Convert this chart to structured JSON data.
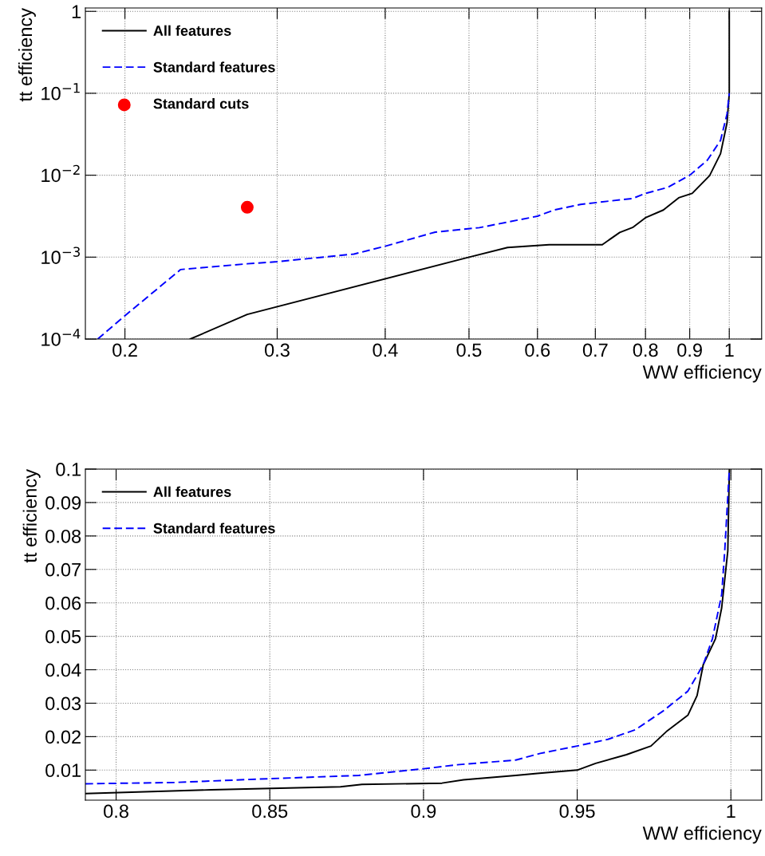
{
  "chart_data": [
    {
      "type": "line",
      "xlabel": "WW efficiency",
      "ylabel": "tt efficiency",
      "log": "xy",
      "grid": true,
      "legend": "top left",
      "xlim": [
        0.18,
        1.09
      ],
      "xticks": [
        0.2,
        0.3,
        0.4,
        0.5,
        0.6,
        0.7,
        0.8,
        0.9,
        1
      ],
      "ylim": [
        0.0001,
        1.1
      ],
      "yticks": [
        {
          "value": 0.0001,
          "label": "10$^{−4}$"
        },
        {
          "value": 0.001,
          "label": "10$^{−3}$"
        },
        {
          "value": 0.01,
          "label": "10$^{−2}$"
        },
        {
          "value": 0.1,
          "label": "10$^{−1}$"
        },
        1
      ],
      "series": [
        {
          "name": "All features",
          "color": "#000000",
          "line_style": "solid",
          "x": [
            0.238,
            0.277,
            0.5,
            0.554,
            0.619,
            0.713,
            0.747,
            0.773,
            0.801,
            0.839,
            0.874,
            0.906,
            0.949,
            0.977,
            0.994,
            1.0,
            1.0
          ],
          "values": [
            0.0001,
            0.0002,
            0.001,
            0.00131,
            0.00142,
            0.00142,
            0.002,
            0.0023,
            0.00305,
            0.00376,
            0.0053,
            0.006,
            0.0099,
            0.0183,
            0.0436,
            0.1,
            1.0
          ]
        },
        {
          "name": "Standard features",
          "color": "#0000ff",
          "line_style": "dashed",
          "x": [
            0.186,
            0.2,
            0.232,
            0.277,
            0.3,
            0.368,
            0.4,
            0.457,
            0.514,
            0.6,
            0.627,
            0.673,
            0.722,
            0.773,
            0.8,
            0.849,
            0.9,
            0.943,
            0.977,
            0.994,
            1.0
          ],
          "values": [
            0.0001,
            0.000193,
            0.000706,
            0.00083,
            0.00088,
            0.00109,
            0.00136,
            0.00202,
            0.00229,
            0.00316,
            0.00376,
            0.0044,
            0.0048,
            0.0052,
            0.006,
            0.0071,
            0.01,
            0.0152,
            0.0266,
            0.0558,
            0.1
          ]
        },
        {
          "name": "Standard cuts",
          "type": "scatter",
          "marker": "circle",
          "color": "#ff0000",
          "x": [
            0.277
          ],
          "values": [
            0.00406
          ]
        }
      ]
    },
    {
      "type": "line",
      "xlabel": "WW efficiency",
      "ylabel": "tt efficiency",
      "grid": true,
      "legend": "top left",
      "xlim": [
        0.79,
        1.01
      ],
      "xticks": [
        0.8,
        0.85,
        0.9,
        0.95,
        1
      ],
      "ylim": [
        0.001,
        0.1
      ],
      "yticks": [
        0.01,
        0.02,
        0.03,
        0.04,
        0.05,
        0.06,
        0.07,
        0.08,
        0.09,
        0.1
      ],
      "series": [
        {
          "name": "All features",
          "color": "#000000",
          "line_style": "solid",
          "x": [
            0.79,
            0.831,
            0.873,
            0.88,
            0.906,
            0.913,
            0.93,
            0.937,
            0.95,
            0.956,
            0.966,
            0.974,
            0.979,
            0.986,
            0.989,
            0.991,
            0.995,
            0.997,
            0.999,
            0.9995
          ],
          "values": [
            0.003,
            0.0041,
            0.005,
            0.0057,
            0.0061,
            0.0071,
            0.0084,
            0.009,
            0.01,
            0.012,
            0.0146,
            0.0172,
            0.0215,
            0.0264,
            0.0323,
            0.0415,
            0.0493,
            0.0585,
            0.0756,
            0.1
          ]
        },
        {
          "name": "Standard features",
          "color": "#0000ff",
          "line_style": "dashed",
          "x": [
            0.79,
            0.819,
            0.849,
            0.879,
            0.9,
            0.911,
            0.93,
            0.938,
            0.95,
            0.96,
            0.969,
            0.978,
            0.986,
            0.991,
            0.994,
            0.997,
            0.998,
            0.9995
          ],
          "values": [
            0.0059,
            0.0063,
            0.0074,
            0.0084,
            0.0104,
            0.0116,
            0.013,
            0.015,
            0.0172,
            0.0192,
            0.0221,
            0.0277,
            0.0336,
            0.0415,
            0.0493,
            0.0625,
            0.0756,
            0.1
          ]
        }
      ]
    }
  ]
}
